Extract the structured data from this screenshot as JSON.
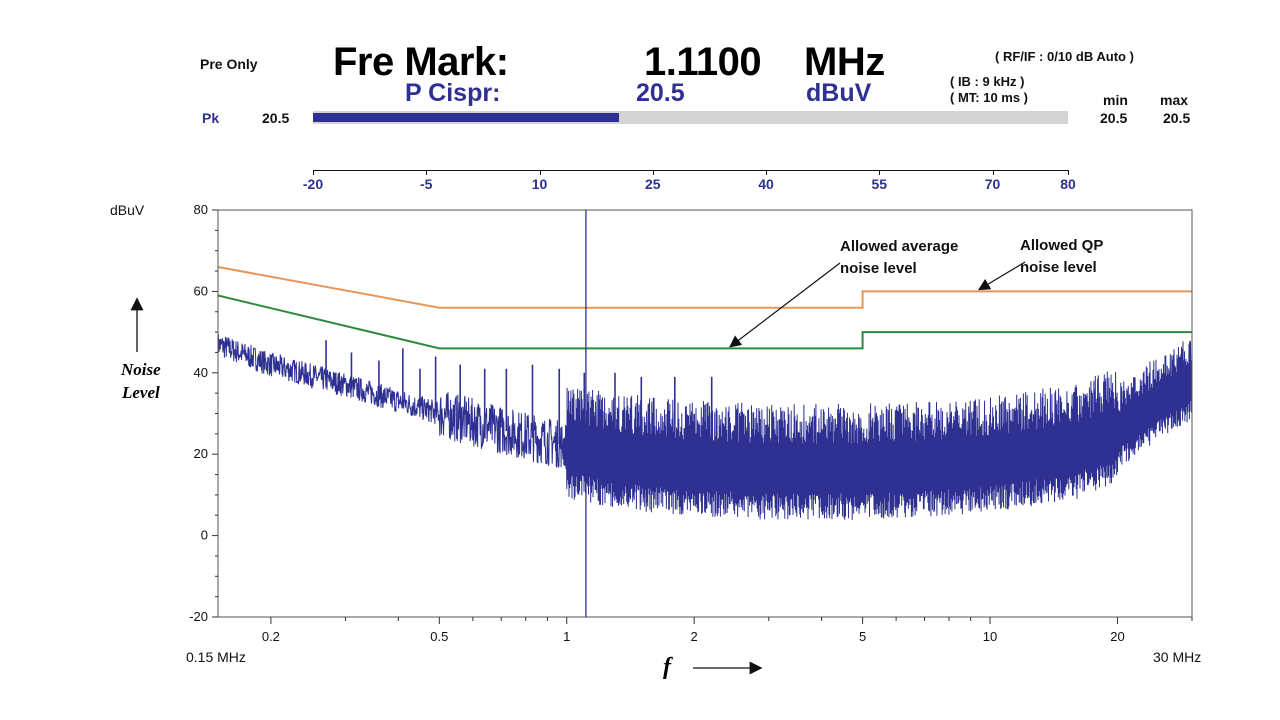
{
  "header": {
    "mode": "Pre Only",
    "marker_label": "Fre Mark:",
    "marker_value": "1.1100",
    "marker_unit": "MHz",
    "detector_label": "P Cispr:",
    "detector_value": "20.5",
    "detector_unit": "dBuV",
    "rfif": "( RF/IF :   0/10   dB   Auto )",
    "ib": "( IB :   9 kHz   )",
    "mt": "( MT:   10 ms   )",
    "min_label": "min",
    "max_label": "max",
    "min_value": "20.5",
    "max_value": "20.5",
    "pk_label": "Pk",
    "pk_value": "20.5"
  },
  "level_bar": {
    "value": 20.5,
    "scale_labels": [
      "-20",
      "-5",
      "10",
      "25",
      "40",
      "55",
      "70",
      "80"
    ]
  },
  "chart_data": {
    "type": "line",
    "ylabel": "dBuV",
    "ylim": [
      -20,
      80
    ],
    "yticks": [
      "80",
      "60",
      "40",
      "20",
      "0",
      "-20"
    ],
    "x_scale": "log",
    "xlim_mhz": [
      0.15,
      30
    ],
    "xticks": [
      "0.2",
      "0.5",
      "1",
      "2",
      "5",
      "10",
      "20"
    ],
    "x_start_label": "0.15 MHz",
    "x_end_label": "30 MHz",
    "marker_mhz": 1.11,
    "limit_lines": [
      {
        "name": "Allowed QP noise level",
        "color": "#e8955a",
        "x": [
          0.15,
          0.5,
          5,
          5,
          30
        ],
        "y": [
          66,
          56,
          56,
          60,
          60
        ]
      },
      {
        "name": "Allowed average noise level",
        "color": "#2e8b3e",
        "x": [
          0.15,
          0.5,
          5,
          5,
          30
        ],
        "y": [
          59,
          46,
          46,
          50,
          50
        ]
      }
    ],
    "spectrum": {
      "color": "#2e3192",
      "baseline_x": [
        0.15,
        0.2,
        0.3,
        0.5,
        0.7,
        1,
        1.5,
        2,
        3,
        5,
        8,
        12,
        16,
        20,
        25,
        30
      ],
      "baseline_y": [
        47,
        42,
        37,
        30,
        26,
        22,
        19,
        18,
        17,
        17,
        18,
        20,
        22,
        26,
        33,
        38
      ],
      "peaks_x": [
        0.27,
        0.31,
        0.36,
        0.41,
        0.45,
        0.49,
        0.56,
        0.64,
        0.72,
        0.83,
        0.96,
        1.1,
        1.3,
        1.5,
        1.8,
        2.2
      ],
      "peaks_y": [
        48,
        45,
        43,
        46,
        41,
        44,
        42,
        41,
        41,
        42,
        41,
        40,
        40,
        39,
        39,
        39
      ],
      "annotation_avg": "Allowed average noise level",
      "annotation_qp": "Allowed QP noise level"
    }
  },
  "annotations": {
    "avg_line1": "Allowed average",
    "avg_line2": "noise level",
    "qp_line1": "Allowed QP",
    "qp_line2": "noise level",
    "noise_line1": "Noise",
    "noise_line2": "Level",
    "f_symbol": "f"
  }
}
